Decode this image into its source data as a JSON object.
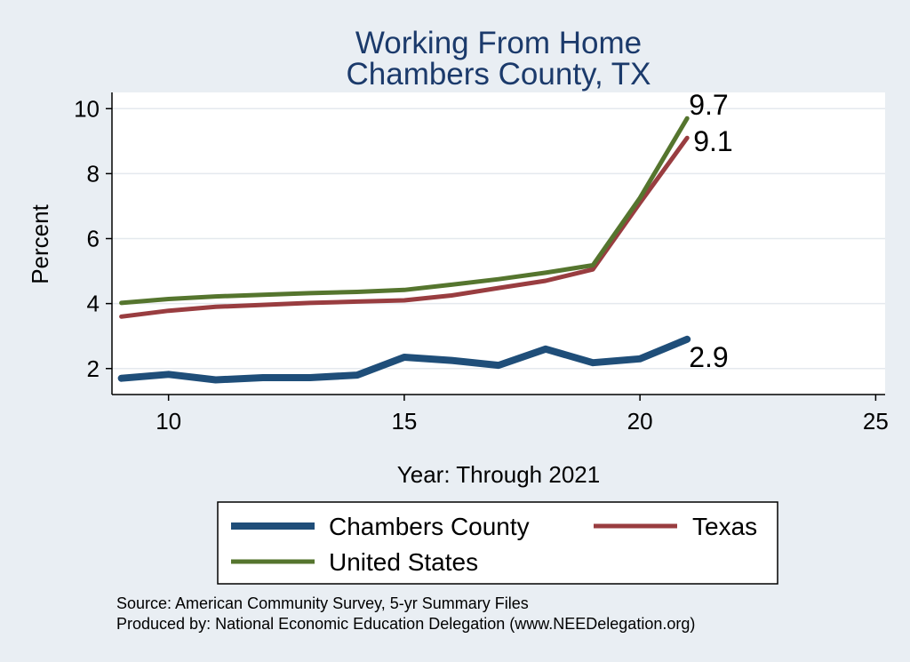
{
  "chart_data": {
    "type": "line",
    "title": [
      "Working From Home",
      "Chambers County, TX"
    ],
    "xlabel": "Year: Through 2021",
    "ylabel": "Percent",
    "xlim": [
      8.8,
      25.2
    ],
    "ylim": [
      1.2,
      10.5
    ],
    "xticks": [
      10,
      15,
      20,
      25
    ],
    "yticks": [
      2,
      4,
      6,
      8,
      10
    ],
    "grid": true,
    "legend_position": "bottom",
    "x": [
      9,
      10,
      11,
      12,
      13,
      14,
      15,
      16,
      17,
      18,
      19,
      20,
      21
    ],
    "series": [
      {
        "name": "Chambers County",
        "color": "#1f4e79",
        "values": [
          1.7,
          1.82,
          1.65,
          1.72,
          1.72,
          1.8,
          2.35,
          2.25,
          2.1,
          2.6,
          2.18,
          2.3,
          2.9
        ],
        "end_label": "2.9"
      },
      {
        "name": "Texas",
        "color": "#993d40",
        "values": [
          3.6,
          3.78,
          3.9,
          3.96,
          4.02,
          4.06,
          4.1,
          4.25,
          4.48,
          4.7,
          5.05,
          7.1,
          9.1
        ],
        "end_label": "9.1"
      },
      {
        "name": "United States",
        "color": "#55752e",
        "values": [
          4.02,
          4.14,
          4.22,
          4.27,
          4.32,
          4.36,
          4.42,
          4.58,
          4.75,
          4.95,
          5.18,
          7.25,
          9.7
        ],
        "end_label": "9.7"
      }
    ],
    "notes": [
      "Source: American Community Survey, 5-yr Summary Files",
      "Produced by: National Economic Education Delegation (www.NEEDelegation.org)"
    ]
  }
}
